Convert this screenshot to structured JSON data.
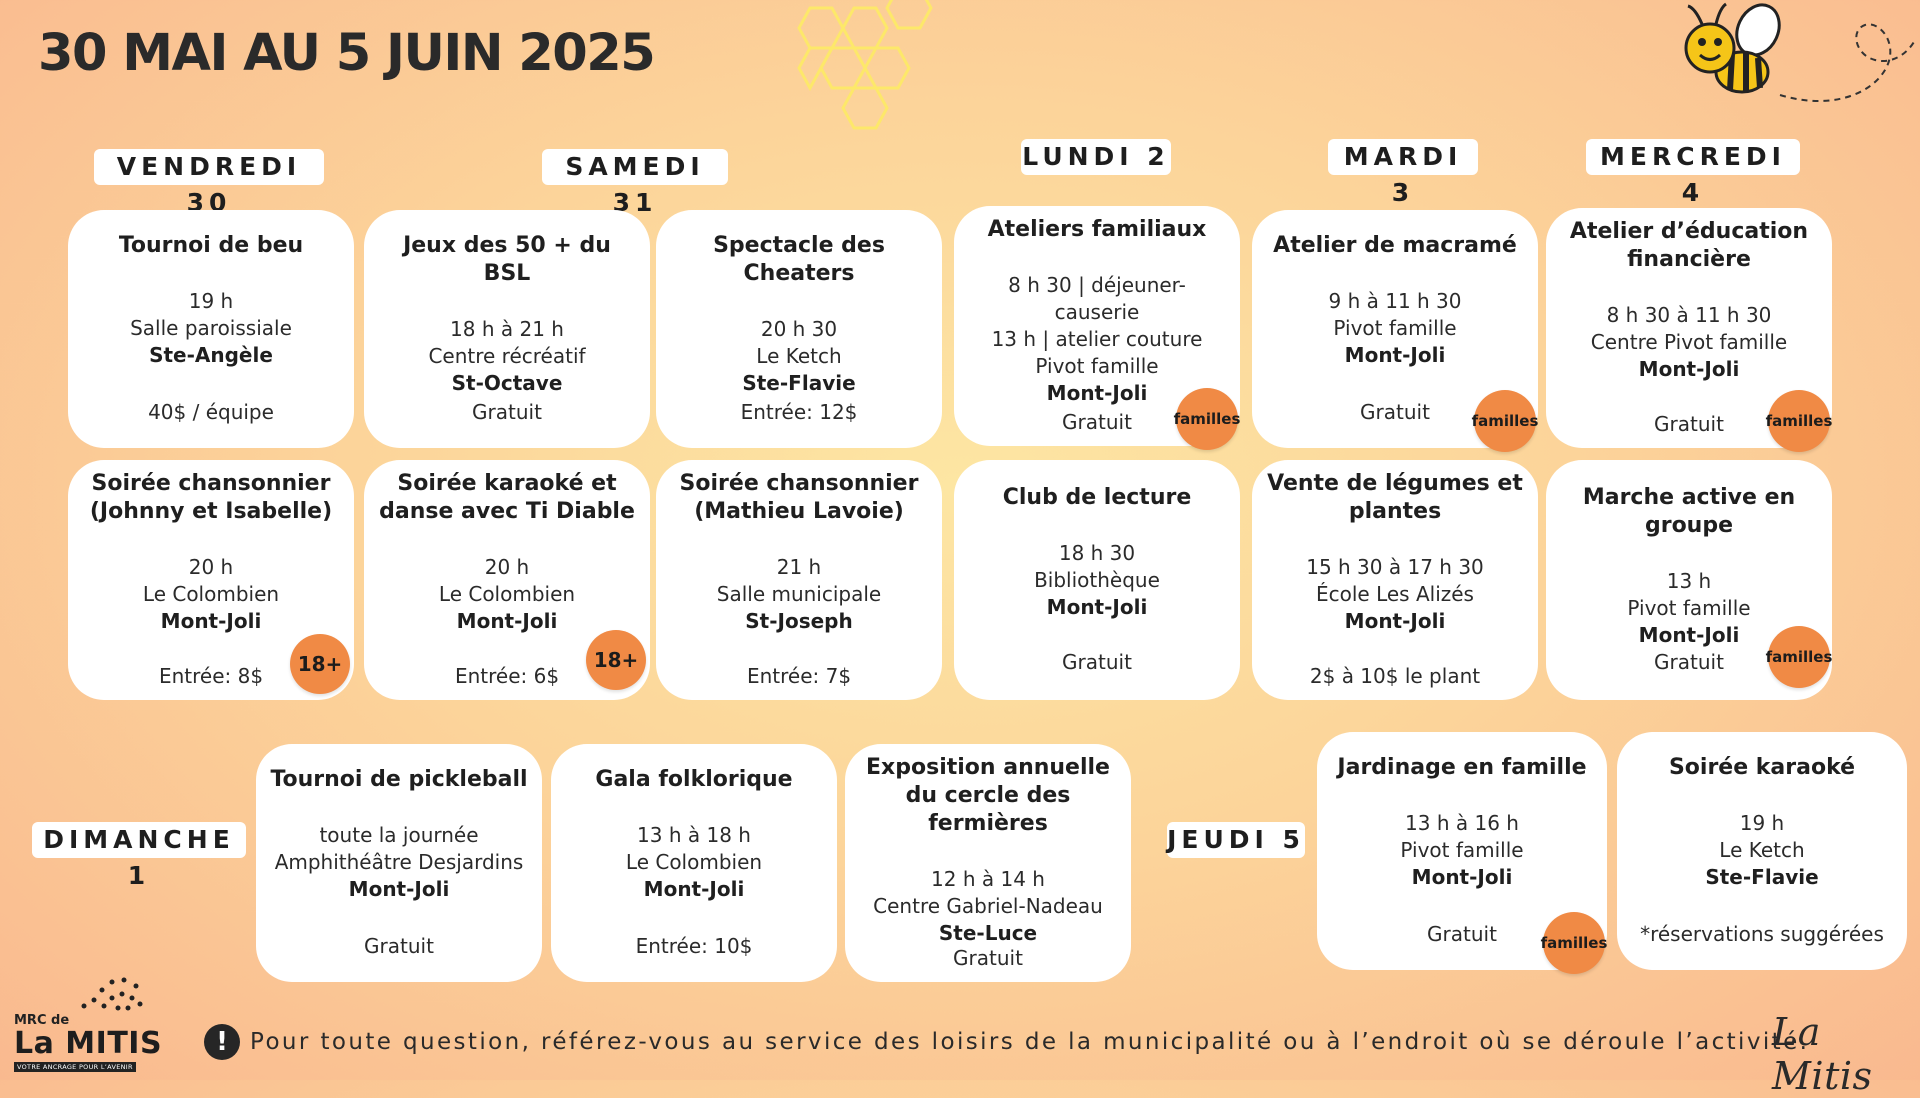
{
  "header": {
    "title": "30 MAI AU 5 JUIN 2025"
  },
  "days": {
    "vendredi": "VENDREDI 30",
    "samedi": "SAMEDI 31",
    "dimanche": "DIMANCHE 1",
    "lundi": "LUNDI 2",
    "mardi": "MARDI 3",
    "mercredi": "MERCREDI 4",
    "jeudi": "JEUDI 5"
  },
  "events": {
    "ven_tournoi": {
      "title": "Tournoi de beu",
      "time": "19 h",
      "place": "Salle paroissiale",
      "town": "Ste-Angèle",
      "price": "40$ / équipe"
    },
    "ven_chanson": {
      "title": "Soirée chansonnier (Johnny et Isabelle)",
      "time": "20 h",
      "place": "Le Colombien",
      "town": "Mont-Joli",
      "price": "Entrée: 8$",
      "badge": "18+"
    },
    "sam_jeux": {
      "title": "Jeux des 50 + du BSL",
      "time": "18 h à 21 h",
      "place": "Centre récréatif",
      "town": "St-Octave",
      "price": "Gratuit"
    },
    "sam_spectacle": {
      "title": "Spectacle des Cheaters",
      "time": "20 h 30",
      "place": "Le Ketch",
      "town": "Ste-Flavie",
      "price": "Entrée: 12$"
    },
    "sam_karaoke": {
      "title": "Soirée karaoké et danse avec Ti Diable",
      "time": "20 h",
      "place": "Le Colombien",
      "town": "Mont-Joli",
      "price": "Entrée: 6$",
      "badge": "18+"
    },
    "sam_chanson": {
      "title": "Soirée chansonnier (Mathieu Lavoie)",
      "time": "21 h",
      "place": "Salle municipale",
      "town": "St-Joseph",
      "price": "Entrée: 7$"
    },
    "lun_ateliers": {
      "title": "Ateliers familiaux",
      "line1": "8 h 30 | déjeuner-causerie",
      "line2": "13 h | atelier couture",
      "place": "Pivot famille",
      "town": "Mont-Joli",
      "price": "Gratuit",
      "badge": "familles"
    },
    "lun_club": {
      "title": "Club de lecture",
      "time": "18 h 30",
      "place": "Bibliothèque",
      "town": "Mont-Joli",
      "price": "Gratuit"
    },
    "mar_macrame": {
      "title": "Atelier de macramé",
      "time": "9 h à 11 h 30",
      "place": "Pivot famille",
      "town": "Mont-Joli",
      "price": "Gratuit",
      "badge": "familles"
    },
    "mar_vente": {
      "title": "Vente de légumes et plantes",
      "time": "15 h 30 à 17 h 30",
      "place": "École Les Alizés",
      "town": "Mont-Joli",
      "price": "2$ à 10$ le plant"
    },
    "mer_atelier": {
      "title": "Atelier d’éducation financière",
      "time": "8 h 30 à 11 h 30",
      "place": "Centre Pivot famille",
      "town": "Mont-Joli",
      "price": "Gratuit",
      "badge": "familles"
    },
    "mer_marche": {
      "title": "Marche active en groupe",
      "time": "13 h",
      "place": "Pivot famille",
      "town": "Mont-Joli",
      "price": "Gratuit",
      "badge": "familles"
    },
    "dim_pickleball": {
      "title": "Tournoi de pickleball",
      "time": "toute la journée",
      "place": "Amphithéâtre Desjardins",
      "town": "Mont-Joli",
      "price": "Gratuit"
    },
    "dim_gala": {
      "title": "Gala folklorique",
      "time": "13 h à 18 h",
      "place": "Le Colombien",
      "town": "Mont-Joli",
      "price": "Entrée: 10$"
    },
    "dim_expo": {
      "title": "Exposition annuelle du cercle des fermières",
      "time": "12 h à 14 h",
      "place": "Centre Gabriel-Nadeau",
      "town": "Ste-Luce",
      "price": "Gratuit"
    },
    "jeu_jardinage": {
      "title": "Jardinage en famille",
      "time": "13 h à 16 h",
      "place": "Pivot famille",
      "town": "Mont-Joli",
      "price": "Gratuit",
      "badge": "familles"
    },
    "jeu_karaoke": {
      "title": "Soirée karaoké",
      "time": "19 h",
      "place": "Le Ketch",
      "town": "Ste-Flavie",
      "price": "*réservations suggérées"
    }
  },
  "footer": {
    "notice": "Pour toute question, référez-vous au service des loisirs de la municipalité ou à l’endroit où se déroule l’activité.",
    "notice_icon": "exclamation-icon"
  },
  "logos": {
    "mrc_small": "MRC de",
    "mrc_big": "La MITIS",
    "mrc_tagline": "VOTRE ANCRAGE POUR L’AVENIR",
    "lamitis": "La Mitis"
  },
  "colors": {
    "badge": "#f08a45",
    "background": "#fcd49a",
    "honeycomb": "#fde86a"
  }
}
